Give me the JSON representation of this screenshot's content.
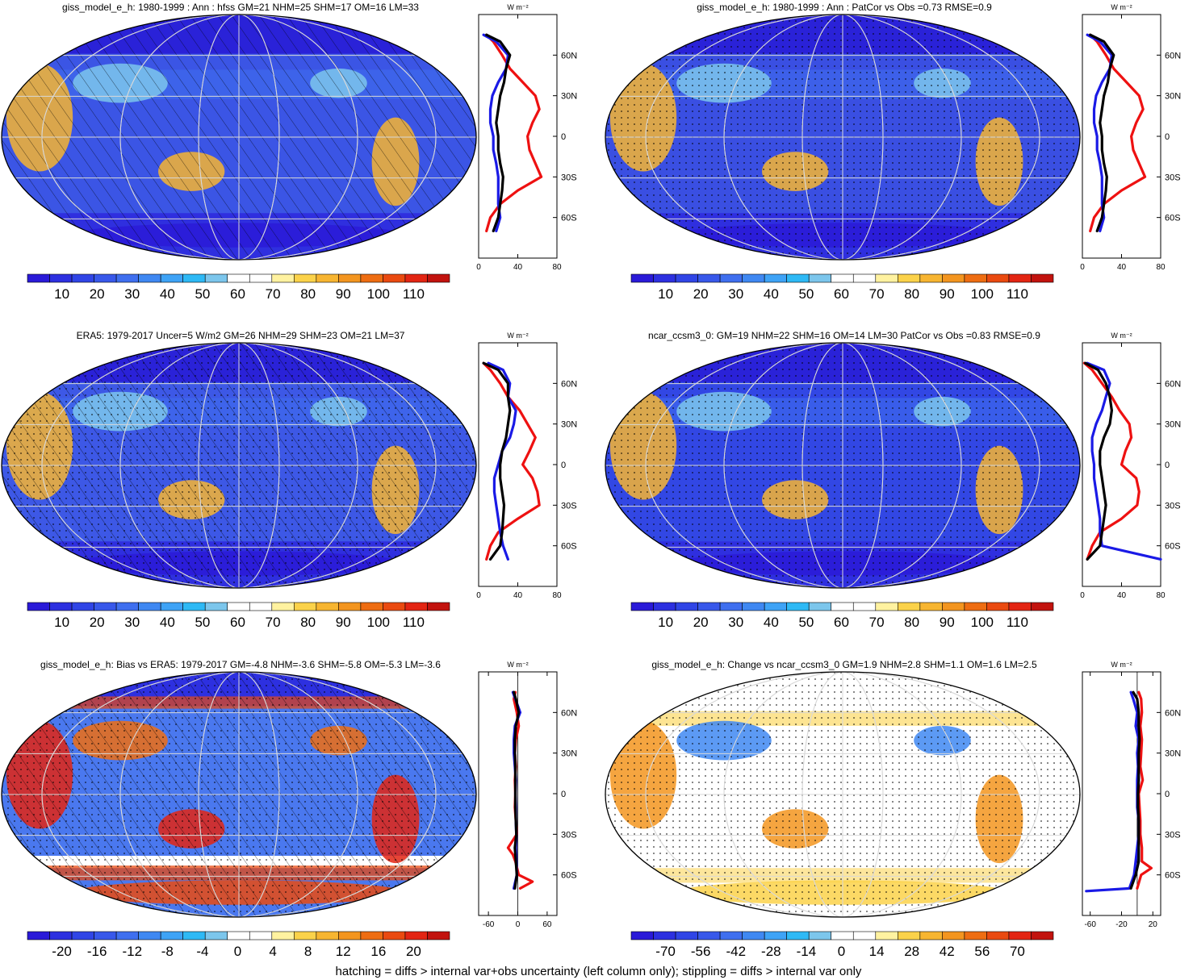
{
  "palette": [
    "#2a1ad8",
    "#2d30e0",
    "#3045e6",
    "#3858ea",
    "#3f6fef",
    "#3f88f2",
    "#3ea3f6",
    "#2eb9f5",
    "#7cc6ec",
    "#ffffff",
    "#ffffff",
    "#fff2a0",
    "#fbd24a",
    "#f7b531",
    "#f3951f",
    "#ee6d12",
    "#ea4a10",
    "#e32513",
    "#c2130e"
  ],
  "colors": {
    "red": "#ee1111",
    "blue": "#1a1ae6",
    "black": "#000000",
    "grid": "#d8d8d8"
  },
  "footnote": "hatching = diffs > internal var+obs uncertainty (left column only); stippling = diffs > internal var only",
  "chart_data": [
    {
      "type": "heatmap",
      "panel": "giss_model_e_h",
      "title": "giss_model_e_h: 1980-1999 : Ann : hfss GM=21 NHM=25 SHM=17 OM=16 LM=33",
      "colorbar_labels": [
        "10",
        "20",
        "30",
        "40",
        "50",
        "60",
        "70",
        "80",
        "90",
        "100",
        "110"
      ],
      "profile": {
        "unit": "W m⁻²",
        "x_ticks": [
          "0",
          "40",
          "80"
        ],
        "xlim": [
          0,
          80
        ],
        "y_ticks": [
          "60N",
          "30N",
          "0",
          "30S",
          "60S"
        ],
        "ylim": [
          -90,
          90
        ],
        "series": [
          {
            "color": "red",
            "lat": [
              75,
              70,
              60,
              50,
              40,
              30,
              20,
              10,
              0,
              -10,
              -20,
              -30,
              -40,
              -50,
              -60,
              -70
            ],
            "values": [
              8,
              15,
              24,
              32,
              45,
              58,
              62,
              55,
              50,
              52,
              58,
              64,
              40,
              22,
              12,
              8
            ]
          },
          {
            "color": "blue",
            "lat": [
              75,
              70,
              60,
              50,
              40,
              30,
              20,
              10,
              0,
              -10,
              -20,
              -30,
              -40,
              -50,
              -60,
              -70
            ],
            "values": [
              5,
              18,
              30,
              28,
              20,
              14,
              12,
              12,
              15,
              15,
              18,
              20,
              20,
              20,
              22,
              18
            ]
          },
          {
            "color": "black",
            "lat": [
              75,
              70,
              60,
              50,
              40,
              30,
              20,
              10,
              0,
              -10,
              -20,
              -30,
              -40,
              -50,
              -60,
              -70
            ],
            "values": [
              8,
              22,
              32,
              28,
              26,
              22,
              20,
              18,
              20,
              20,
              22,
              25,
              24,
              22,
              20,
              15
            ]
          }
        ]
      }
    },
    {
      "type": "heatmap",
      "panel": "giss_model_e_h_patcor",
      "title": "giss_model_e_h: 1980-1999 : Ann : PatCor vs Obs =0.73 RMSE=0.9",
      "colorbar_labels": [
        "10",
        "20",
        "30",
        "40",
        "50",
        "60",
        "70",
        "80",
        "90",
        "100",
        "110"
      ],
      "profile": {
        "unit": "W m⁻²",
        "x_ticks": [
          "0",
          "40",
          "80"
        ],
        "xlim": [
          0,
          80
        ],
        "y_ticks": [
          "60N",
          "30N",
          "0",
          "30S",
          "60S"
        ],
        "ylim": [
          -90,
          90
        ],
        "series": [
          {
            "color": "red",
            "lat": [
              75,
              70,
              60,
              50,
              40,
              30,
              20,
              10,
              0,
              -10,
              -20,
              -30,
              -40,
              -50,
              -60,
              -70
            ],
            "values": [
              8,
              15,
              24,
              32,
              45,
              58,
              62,
              55,
              50,
              52,
              58,
              64,
              40,
              22,
              12,
              8
            ]
          },
          {
            "color": "blue",
            "lat": [
              75,
              70,
              60,
              50,
              40,
              30,
              20,
              10,
              0,
              -10,
              -20,
              -30,
              -40,
              -50,
              -60,
              -70
            ],
            "values": [
              5,
              18,
              30,
              28,
              20,
              14,
              12,
              12,
              15,
              15,
              18,
              20,
              20,
              20,
              22,
              18
            ]
          },
          {
            "color": "black",
            "lat": [
              75,
              70,
              60,
              50,
              40,
              30,
              20,
              10,
              0,
              -10,
              -20,
              -30,
              -40,
              -50,
              -60,
              -70
            ],
            "values": [
              8,
              22,
              32,
              28,
              26,
              22,
              20,
              18,
              20,
              20,
              22,
              25,
              24,
              22,
              20,
              15
            ]
          }
        ]
      }
    },
    {
      "type": "heatmap",
      "panel": "ERA5",
      "title": "ERA5: 1979-2017 Uncer=5 W/m2 GM=26 NHM=29 SHM=23 OM=21 LM=37",
      "colorbar_labels": [
        "10",
        "20",
        "30",
        "40",
        "50",
        "60",
        "70",
        "80",
        "90",
        "100",
        "110"
      ],
      "profile": {
        "unit": "W m⁻²",
        "x_ticks": [
          "0",
          "40",
          "80"
        ],
        "xlim": [
          0,
          80
        ],
        "y_ticks": [
          "60N",
          "30N",
          "0",
          "30S",
          "60S"
        ],
        "ylim": [
          -90,
          90
        ],
        "series": [
          {
            "color": "red",
            "lat": [
              75,
              70,
              60,
              50,
              40,
              30,
              20,
              10,
              0,
              -10,
              -20,
              -30,
              -40,
              -50,
              -60,
              -70
            ],
            "values": [
              5,
              12,
              22,
              30,
              42,
              50,
              58,
              52,
              45,
              55,
              60,
              62,
              40,
              20,
              12,
              8
            ]
          },
          {
            "color": "blue",
            "lat": [
              75,
              70,
              60,
              50,
              40,
              30,
              20,
              10,
              0,
              -10,
              -20,
              -30,
              -40,
              -50,
              -60,
              -70
            ],
            "values": [
              10,
              25,
              32,
              30,
              38,
              36,
              32,
              24,
              20,
              16,
              16,
              18,
              20,
              22,
              25,
              30
            ]
          },
          {
            "color": "black",
            "lat": [
              75,
              70,
              60,
              50,
              40,
              30,
              20,
              10,
              0,
              -10,
              -20,
              -30,
              -40,
              -50,
              -60,
              -70
            ],
            "values": [
              5,
              20,
              30,
              30,
              32,
              30,
              28,
              24,
              22,
              22,
              24,
              26,
              25,
              24,
              22,
              12
            ]
          }
        ]
      }
    },
    {
      "type": "heatmap",
      "panel": "ncar_ccsm3_0",
      "title": "ncar_ccsm3_0: GM=19 NHM=22 SHM=16 OM=14 LM=30 PatCor vs Obs =0.83 RMSE=0.9",
      "colorbar_labels": [
        "10",
        "20",
        "30",
        "40",
        "50",
        "60",
        "70",
        "80",
        "90",
        "100",
        "110"
      ],
      "profile": {
        "unit": "W m⁻²",
        "x_ticks": [
          "0",
          "40",
          "80"
        ],
        "xlim": [
          0,
          80
        ],
        "y_ticks": [
          "60N",
          "30N",
          "0",
          "30S",
          "60S"
        ],
        "ylim": [
          -90,
          90
        ],
        "series": [
          {
            "color": "red",
            "lat": [
              75,
              70,
              60,
              50,
              40,
              30,
              20,
              10,
              0,
              -10,
              -20,
              -30,
              -40,
              -50,
              -60,
              -70
            ],
            "values": [
              2,
              10,
              20,
              30,
              38,
              48,
              50,
              44,
              40,
              55,
              58,
              56,
              40,
              18,
              10,
              5
            ]
          },
          {
            "color": "blue",
            "lat": [
              75,
              70,
              60,
              50,
              40,
              30,
              20,
              10,
              0,
              -10,
              -20,
              -30,
              -40,
              -50,
              -60,
              -70
            ],
            "values": [
              5,
              22,
              28,
              24,
              20,
              14,
              10,
              10,
              12,
              12,
              14,
              16,
              18,
              18,
              20,
              80
            ]
          },
          {
            "color": "black",
            "lat": [
              75,
              70,
              60,
              50,
              40,
              30,
              20,
              10,
              0,
              -10,
              -20,
              -30,
              -40,
              -50,
              -60,
              -70
            ],
            "values": [
              3,
              16,
              24,
              28,
              30,
              28,
              22,
              18,
              18,
              20,
              22,
              24,
              22,
              20,
              18,
              5
            ]
          }
        ]
      }
    },
    {
      "type": "heatmap",
      "panel": "giss_bias_vs_era5",
      "title": "giss_model_e_h: Bias vs ERA5: 1979-2017 GM=-4.8 NHM=-3.6 SHM=-5.8 OM=-5.3 LM=-3.6",
      "colorbar_labels": [
        "-20",
        "-16",
        "-12",
        "-8",
        "-4",
        "0",
        "4",
        "8",
        "12",
        "16",
        "20"
      ],
      "profile": {
        "unit": "W m⁻²",
        "x_ticks": [
          "-60",
          "0",
          "60"
        ],
        "xlim": [
          -80,
          80
        ],
        "y_ticks": [
          "60N",
          "30N",
          "0",
          "30S",
          "60S"
        ],
        "ylim": [
          -90,
          90
        ],
        "series": [
          {
            "color": "red",
            "lat": [
              75,
              70,
              60,
              50,
              40,
              30,
              20,
              10,
              0,
              -10,
              -20,
              -30,
              -40,
              -45,
              -50,
              -60,
              -65,
              -70
            ],
            "values": [
              -5,
              -8,
              -2,
              2,
              -4,
              -6,
              -4,
              -6,
              -5,
              -6,
              -4,
              -2,
              -20,
              -10,
              -5,
              2,
              30,
              5
            ]
          },
          {
            "color": "blue",
            "lat": [
              75,
              70,
              60,
              50,
              40,
              30,
              20,
              10,
              0,
              -10,
              -20,
              -30,
              -40,
              -50,
              -60,
              -70
            ],
            "values": [
              -10,
              -5,
              5,
              -6,
              -8,
              -8,
              -6,
              -4,
              -5,
              -4,
              -4,
              -3,
              -4,
              -3,
              -2,
              -8
            ]
          },
          {
            "color": "black",
            "lat": [
              75,
              70,
              60,
              50,
              40,
              30,
              20,
              10,
              0,
              -10,
              -20,
              -30,
              -40,
              -50,
              -60,
              -70
            ],
            "values": [
              -8,
              -4,
              2,
              -4,
              -6,
              -6,
              -5,
              -5,
              -5,
              -5,
              -4,
              -3,
              -6,
              -4,
              -2,
              -6
            ]
          }
        ]
      }
    },
    {
      "type": "heatmap",
      "panel": "giss_change_vs_ncar",
      "title": "giss_model_e_h: Change vs ncar_ccsm3_0 GM=1.9 NHM=2.8 SHM=1.1 OM=1.6 LM=2.5",
      "colorbar_labels": [
        "-70",
        "-56",
        "-42",
        "-28",
        "-14",
        "0",
        "14",
        "28",
        "42",
        "56",
        "70"
      ],
      "profile": {
        "unit": "W m⁻²",
        "x_ticks": [
          "-60",
          "-20",
          "20"
        ],
        "xlim": [
          -70,
          30
        ],
        "y_ticks": [
          "60N",
          "30N",
          "0",
          "30S",
          "60S"
        ],
        "ylim": [
          -90,
          90
        ],
        "series": [
          {
            "color": "red",
            "lat": [
              75,
              70,
              60,
              50,
              40,
              30,
              20,
              10,
              0,
              -10,
              -20,
              -30,
              -40,
              -50,
              -55,
              -60,
              -70
            ],
            "values": [
              2,
              5,
              6,
              4,
              6,
              5,
              4,
              7,
              2,
              3,
              4,
              4,
              6,
              6,
              18,
              5,
              0
            ]
          },
          {
            "color": "blue",
            "lat": [
              75,
              70,
              60,
              50,
              40,
              30,
              20,
              10,
              0,
              -10,
              -20,
              -30,
              -40,
              -50,
              -60,
              -70,
              -72
            ],
            "values": [
              -8,
              -5,
              0,
              -2,
              2,
              0,
              1,
              0,
              0,
              0,
              2,
              2,
              0,
              -2,
              -4,
              -10,
              -65
            ]
          },
          {
            "color": "black",
            "lat": [
              75,
              70,
              60,
              50,
              40,
              30,
              20,
              10,
              0,
              -10,
              -20,
              -30,
              -40,
              -50,
              -60,
              -70
            ],
            "values": [
              -5,
              0,
              2,
              2,
              3,
              2,
              2,
              2,
              1,
              1,
              2,
              2,
              2,
              2,
              -2,
              -8
            ]
          }
        ]
      }
    }
  ]
}
